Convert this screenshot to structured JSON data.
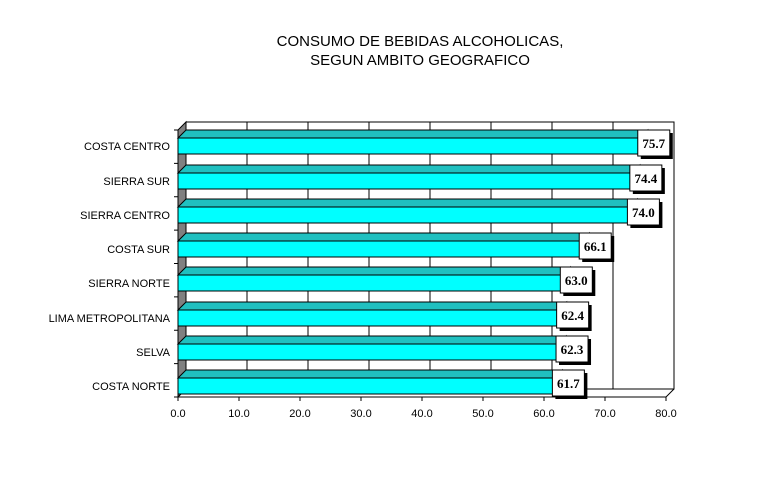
{
  "chart_data": {
    "type": "bar",
    "orientation": "horizontal",
    "title": [
      "CONSUMO DE BEBIDAS ALCOHOLICAS,",
      "SEGUN AMBITO GEOGRAFICO"
    ],
    "categories": [
      "COSTA CENTRO",
      "SIERRA SUR",
      "SIERRA CENTRO",
      "COSTA SUR",
      "SIERRA NORTE",
      "LIMA METROPOLITANA",
      "SELVA",
      "COSTA NORTE"
    ],
    "values": [
      75.7,
      74.4,
      74.0,
      66.1,
      63.0,
      62.4,
      62.3,
      61.7
    ],
    "data_labels": [
      "75.7",
      "74.4",
      "74.0",
      "66.1",
      "63.0",
      "62.4",
      "62.3",
      "61.7"
    ],
    "xlim": [
      0,
      80
    ],
    "x_ticks": [
      "0.0",
      "10.0",
      "20.0",
      "30.0",
      "40.0",
      "50.0",
      "60.0",
      "70.0",
      "80.0"
    ],
    "x_tick_values": [
      0,
      10,
      20,
      30,
      40,
      50,
      60,
      70,
      80
    ],
    "xlabel": "",
    "ylabel": "",
    "grid": "vertical",
    "style": "3d",
    "legend": "none",
    "colors": {
      "bar_front": "#00ffff",
      "bar_top": "#20c0c0",
      "bar_outline": "#000000",
      "wall": "#808080",
      "grid": "#000000",
      "label_box": "#ffffff",
      "label_shadow": "#000000"
    }
  }
}
